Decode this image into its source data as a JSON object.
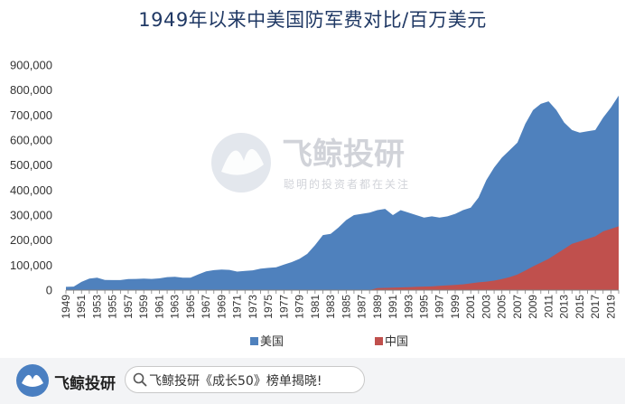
{
  "chart_data": {
    "type": "area",
    "title": "1949年以来中美国防军费对比/百万美元",
    "xlabel": "",
    "ylabel": "",
    "x": [
      1949,
      1950,
      1951,
      1952,
      1953,
      1954,
      1955,
      1956,
      1957,
      1958,
      1959,
      1960,
      1961,
      1962,
      1963,
      1964,
      1965,
      1966,
      1967,
      1968,
      1969,
      1970,
      1971,
      1972,
      1973,
      1974,
      1975,
      1976,
      1977,
      1978,
      1979,
      1980,
      1981,
      1982,
      1983,
      1984,
      1985,
      1986,
      1987,
      1988,
      1989,
      1990,
      1991,
      1992,
      1993,
      1994,
      1995,
      1996,
      1997,
      1998,
      1999,
      2000,
      2001,
      2002,
      2003,
      2004,
      2005,
      2006,
      2007,
      2008,
      2009,
      2010,
      2011,
      2012,
      2013,
      2014,
      2015,
      2016,
      2017,
      2018,
      2019,
      2020
    ],
    "x_tick_labels": [
      "1949",
      "1951",
      "1953",
      "1955",
      "1957",
      "1959",
      "1961",
      "1963",
      "1965",
      "1967",
      "1969",
      "1971",
      "1973",
      "1975",
      "1977",
      "1979",
      "1981",
      "1983",
      "1985",
      "1987",
      "1989",
      "1991",
      "1993",
      "1995",
      "1997",
      "1999",
      "2001",
      "2003",
      "2005",
      "2007",
      "2009",
      "2011",
      "2013",
      "2015",
      "2017",
      "2019"
    ],
    "y_tick_labels": [
      "0",
      "100,000",
      "200,000",
      "300,000",
      "400,000",
      "500,000",
      "600,000",
      "700,000",
      "800,000",
      "900,000"
    ],
    "ylim": [
      0,
      900000
    ],
    "grid": false,
    "legend_position": "bottom",
    "series": [
      {
        "name": "美国",
        "color": "#4f81bd",
        "values": [
          13000,
          14000,
          33000,
          46000,
          50000,
          41000,
          40000,
          40000,
          44000,
          45000,
          46000,
          45000,
          47000,
          52000,
          53000,
          50000,
          50000,
          63000,
          75000,
          80000,
          82000,
          81000,
          74000,
          77000,
          79000,
          86000,
          89000,
          91000,
          102000,
          112000,
          125000,
          145000,
          180000,
          220000,
          225000,
          250000,
          280000,
          300000,
          305000,
          310000,
          320000,
          325000,
          300000,
          320000,
          310000,
          300000,
          290000,
          295000,
          290000,
          295000,
          305000,
          320000,
          330000,
          370000,
          440000,
          490000,
          530000,
          560000,
          590000,
          665000,
          720000,
          745000,
          755000,
          720000,
          670000,
          640000,
          630000,
          635000,
          640000,
          690000,
          730000,
          778000
        ]
      },
      {
        "name": "中国",
        "color": "#c0504d",
        "values": [
          0,
          0,
          0,
          0,
          0,
          0,
          0,
          0,
          0,
          0,
          0,
          0,
          0,
          0,
          0,
          0,
          0,
          0,
          0,
          0,
          0,
          0,
          0,
          0,
          0,
          0,
          0,
          0,
          0,
          0,
          0,
          0,
          0,
          0,
          0,
          0,
          0,
          0,
          0,
          0,
          8000,
          9000,
          10000,
          11000,
          12000,
          13000,
          14000,
          15000,
          17000,
          19000,
          21000,
          23000,
          27000,
          31000,
          34000,
          38000,
          44000,
          52000,
          62000,
          78000,
          95000,
          110000,
          125000,
          145000,
          165000,
          185000,
          195000,
          205000,
          215000,
          235000,
          245000,
          255000
        ]
      }
    ]
  },
  "watermark": {
    "title": "飞鲸投研",
    "subtitle": "聪明的投资者都在关注"
  },
  "footer": {
    "brand": "飞鲸投研",
    "search_text": "飞鲸投研《成长50》榜单揭晓!",
    "logo_icon": "whale-logo-icon",
    "search_icon": "search-icon",
    "accent_color": "#4a7fc1"
  }
}
